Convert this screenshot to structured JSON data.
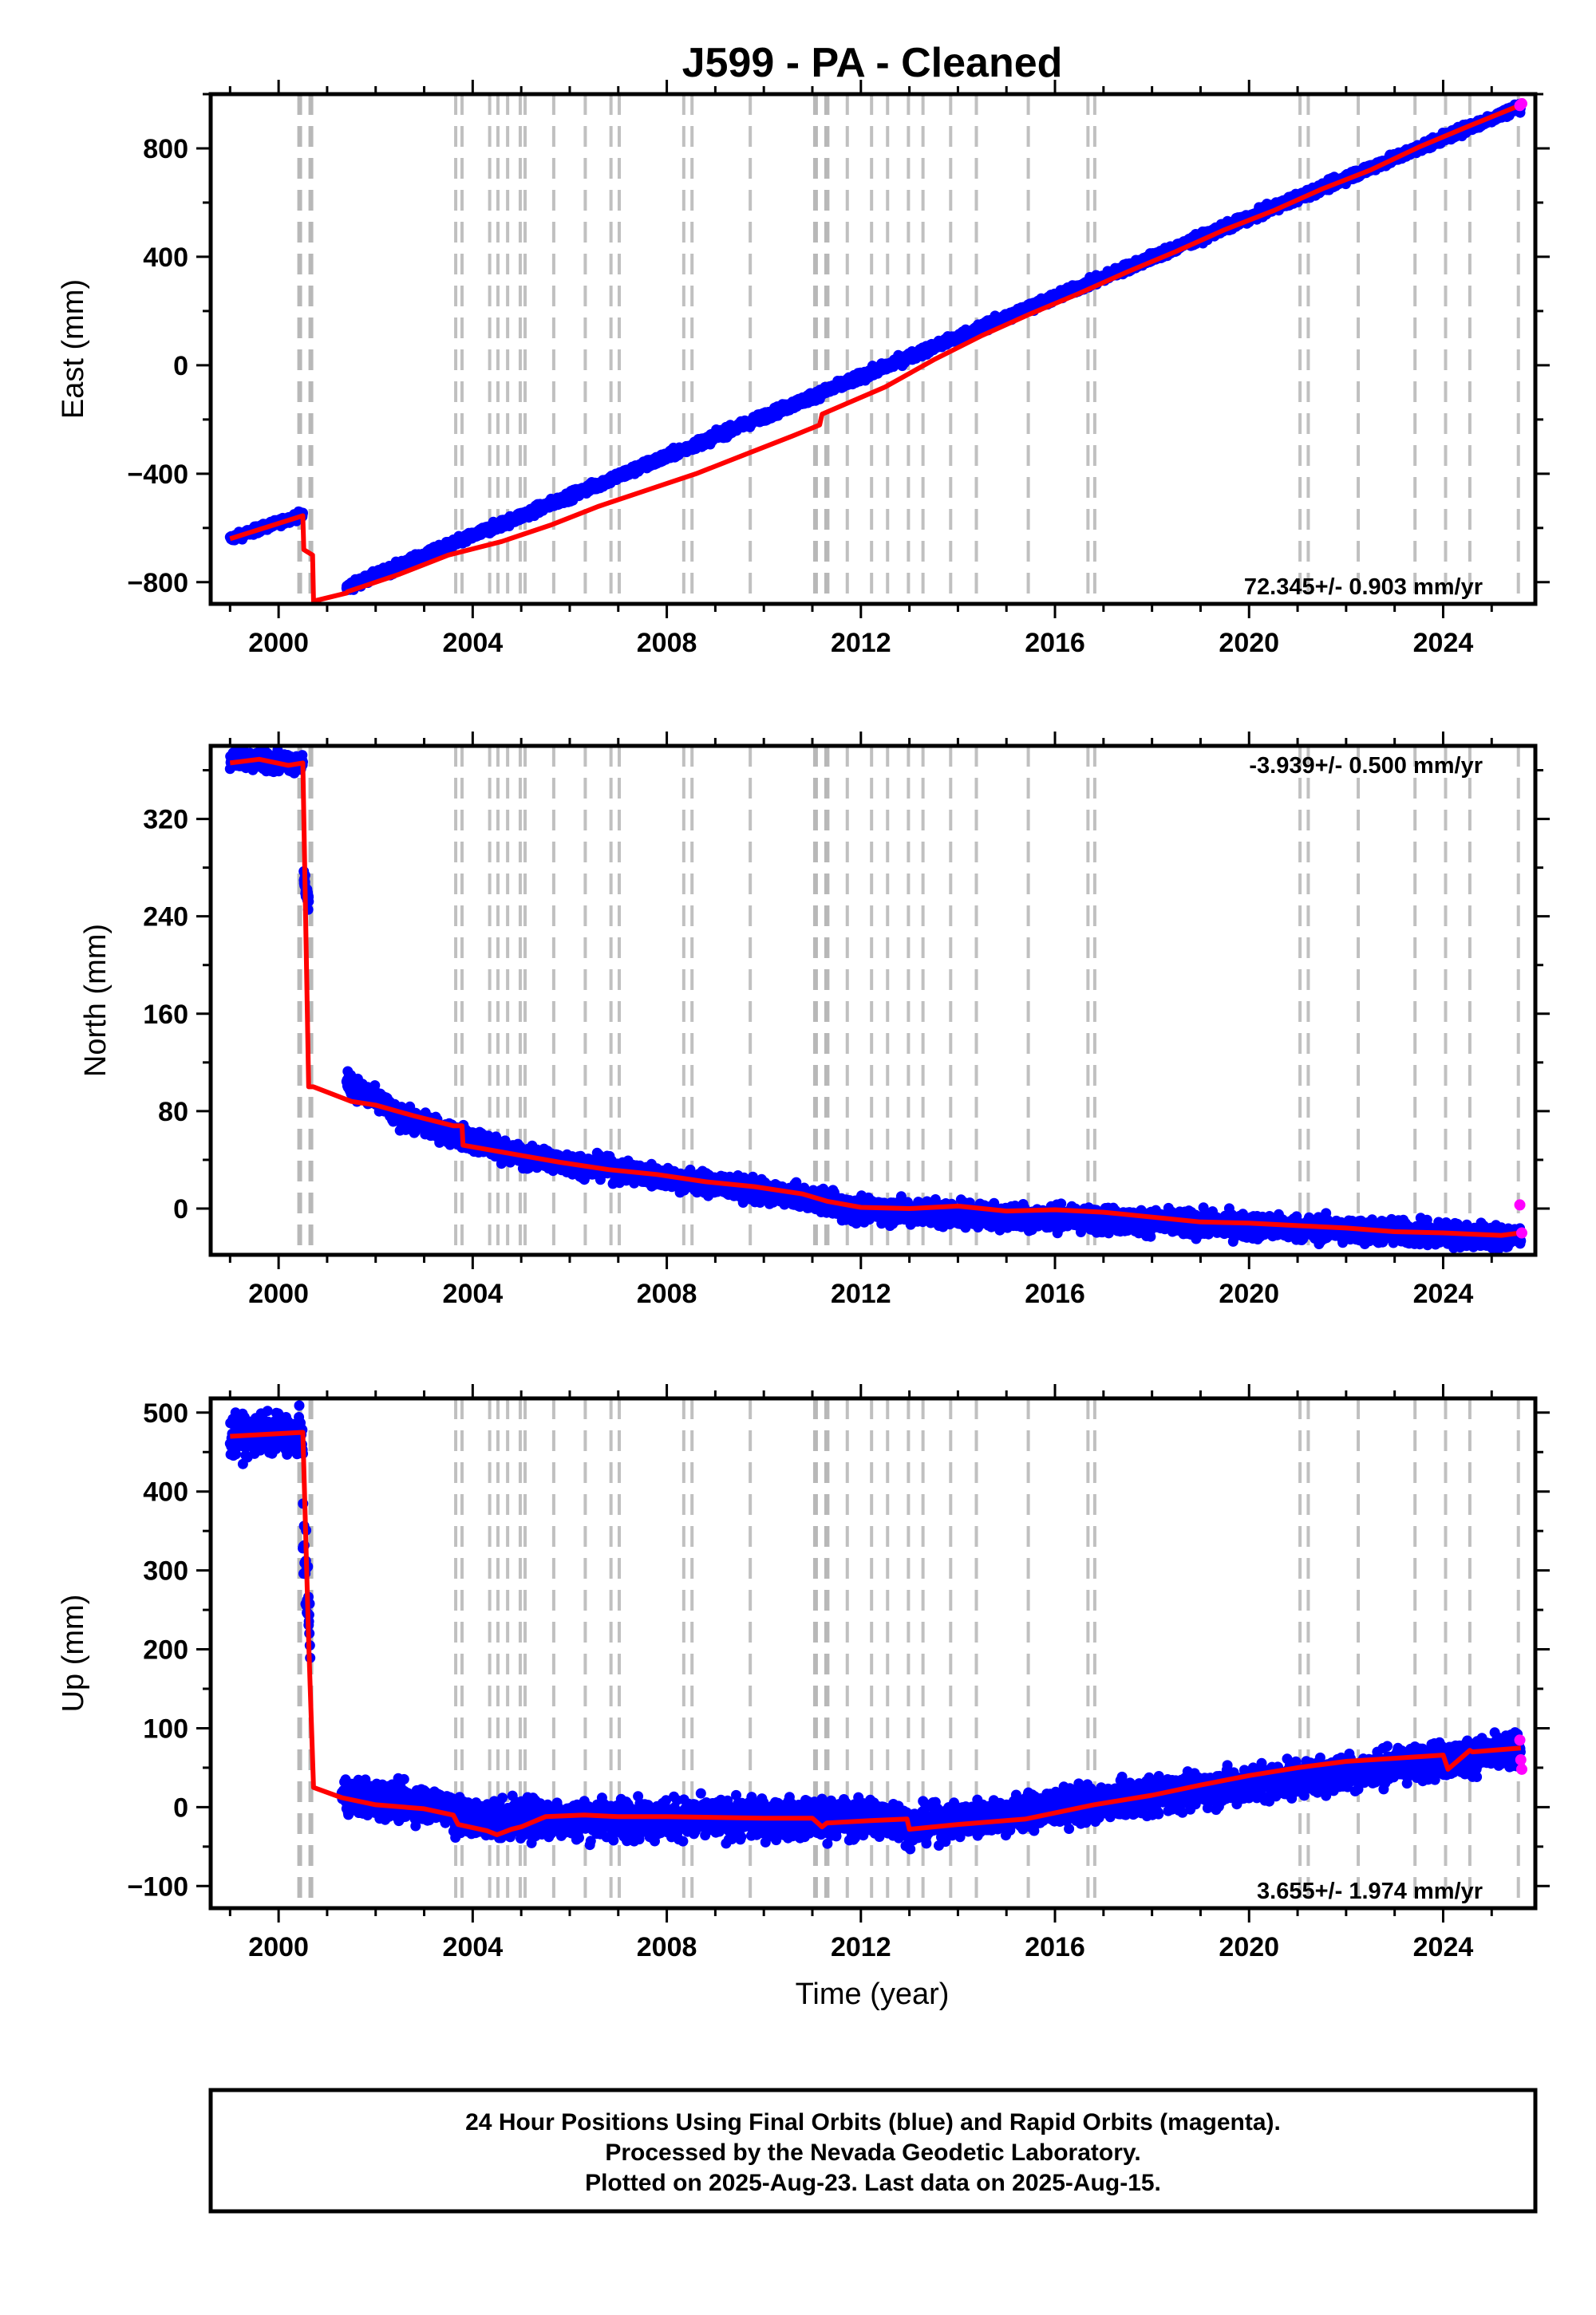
{
  "title": "J599  - PA - Cleaned",
  "xlabel": "Time (year)",
  "xticks": [
    "2000",
    "2004",
    "2008",
    "2012",
    "2016",
    "2020",
    "2024"
  ],
  "colors": {
    "final": "#0000ff",
    "rapid": "#ff00ff",
    "model": "#ff0000",
    "steps": "#c0c0c0",
    "steps_thick": "#b8b8b8"
  },
  "caption": {
    "line1": "24 Hour Positions Using Final Orbits (blue) and Rapid Orbits (magenta).",
    "line2": "Processed by the Nevada Geodetic Laboratory.",
    "line3": "Plotted on 2025-Aug-23. Last data on 2025-Aug-15."
  },
  "chart_data": [
    {
      "type": "scatter",
      "panel": "east",
      "ylabel": "East (mm)",
      "rate_label": "72.345+/- 0.903 mm/yr",
      "rate_position": "bottom-right",
      "xlim": [
        1998.6,
        2025.9
      ],
      "ylim": [
        -880,
        1000
      ],
      "yticks": [
        -800,
        -400,
        0,
        400,
        800
      ],
      "ytick_labels": [
        "−800",
        "−400",
        "0",
        "400",
        "800"
      ],
      "steps_thin": [
        2003.65,
        2003.78,
        2004.35,
        2004.52,
        2004.72,
        2004.98,
        2005.08,
        2005.67,
        2006.32,
        2006.85,
        2007.02,
        2008.35,
        2008.52,
        2009.72,
        2011.32,
        2011.72,
        2012.22,
        2012.55,
        2012.98,
        2013.28,
        2013.85,
        2014.38,
        2015.45,
        2016.68,
        2016.82,
        2021.05,
        2021.22,
        2022.25,
        2023.42,
        2024.05,
        2024.55,
        2025.55
      ],
      "steps_thick": [
        2000.55,
        2011.18
      ],
      "model": {
        "x": [
          1999.0,
          2000.5,
          2000.52,
          2000.7,
          2000.72,
          2001.4,
          2001.42,
          2002.5,
          2003.5,
          2004.6,
          2005.6,
          2006.6,
          2007.6,
          2008.6,
          2009.6,
          2010.6,
          2011.15,
          2011.2,
          2012.5,
          2013.5,
          2014.5,
          2015.5,
          2016.5,
          2017.5,
          2018.5,
          2019.5,
          2020.5,
          2021.5,
          2022.5,
          2023.5,
          2024.5,
          2025.6
        ],
        "y": [
          -640,
          -555,
          -680,
          -700,
          -870,
          -840,
          -835,
          -770,
          -700,
          -650,
          -590,
          -520,
          -460,
          -400,
          -330,
          -260,
          -220,
          -180,
          -80,
          20,
          110,
          190,
          265,
          345,
          420,
          500,
          570,
          650,
          720,
          805,
          880,
          960
        ]
      },
      "segments": [
        {
          "x0": 1999.0,
          "x1": 2000.5,
          "y0": -640,
          "y1": -550,
          "spread": 12
        },
        {
          "x0": 2001.4,
          "x1": 2025.6,
          "y0": -820,
          "y1": 955,
          "spread": 15
        }
      ],
      "rapid": {
        "x": [
          2025.58,
          2025.62
        ],
        "y": [
          958,
          965
        ]
      }
    },
    {
      "type": "scatter",
      "panel": "north",
      "ylabel": "North (mm)",
      "rate_label": "-3.939+/- 0.500 mm/yr",
      "rate_position": "top-right",
      "xlim": [
        1998.6,
        2025.9
      ],
      "ylim": [
        -38,
        380
      ],
      "yticks": [
        0,
        80,
        160,
        240,
        320
      ],
      "ytick_labels": [
        "0",
        "80",
        "160",
        "240",
        "320"
      ],
      "steps_thin": [
        2003.65,
        2003.78,
        2004.35,
        2004.52,
        2004.72,
        2004.98,
        2005.08,
        2005.67,
        2006.32,
        2006.85,
        2007.02,
        2008.35,
        2008.52,
        2009.72,
        2011.32,
        2011.72,
        2012.22,
        2012.55,
        2012.98,
        2013.28,
        2013.85,
        2014.38,
        2015.45,
        2016.68,
        2016.82,
        2021.05,
        2021.22,
        2022.25,
        2023.42,
        2024.05,
        2024.55,
        2025.55
      ],
      "steps_thick": [
        2000.55,
        2011.18
      ],
      "model": {
        "x": [
          1999.0,
          1999.6,
          2000.2,
          2000.5,
          2000.62,
          2000.72,
          2001.5,
          2002.0,
          2002.8,
          2003.6,
          2003.78,
          2003.8,
          2004.8,
          2005.8,
          2006.8,
          2007.8,
          2008.8,
          2009.8,
          2010.8,
          2011.3,
          2012.0,
          2013.0,
          2014.0,
          2015.0,
          2016.0,
          2017.0,
          2018.0,
          2019.0,
          2020.0,
          2021.0,
          2022.0,
          2023.0,
          2024.0,
          2024.6,
          2025.2,
          2025.6
        ],
        "y": [
          366,
          369,
          364,
          366,
          100,
          100,
          88,
          85,
          76,
          68,
          68,
          52,
          45,
          38,
          32,
          28,
          22,
          18,
          12,
          6,
          1,
          0,
          2,
          -2,
          -1,
          -3,
          -7,
          -11,
          -12,
          -14,
          -16,
          -19,
          -20,
          -21,
          -22,
          -20
        ]
      },
      "segments": [
        {
          "x0": 1999.0,
          "x1": 2000.5,
          "y0": 370,
          "y1": 366,
          "spread": 7
        },
        {
          "x0": 2000.52,
          "x1": 2000.62,
          "y0": 270,
          "y1": 252,
          "spread": 8
        },
        {
          "x0": 2001.4,
          "x1": 2002.3,
          "y0": 103,
          "y1": 82,
          "spread": 8
        },
        {
          "x0": 2002.3,
          "x1": 2005.0,
          "y0": 78,
          "y1": 43,
          "spread": 8
        },
        {
          "x0": 2005.0,
          "x1": 2011.5,
          "y0": 43,
          "y1": 5,
          "spread": 8
        },
        {
          "x0": 2011.5,
          "x1": 2025.6,
          "y0": 0,
          "y1": -24,
          "spread": 9
        }
      ],
      "rapid": {
        "x": [
          2025.58,
          2025.62
        ],
        "y": [
          3,
          -20
        ]
      }
    },
    {
      "type": "scatter",
      "panel": "up",
      "ylabel": "Up (mm)",
      "rate_label": "3.655+/- 1.974 mm/yr",
      "rate_position": "bottom-right",
      "xlim": [
        1998.6,
        2025.9
      ],
      "ylim": [
        -128,
        518
      ],
      "yticks": [
        -100,
        0,
        100,
        200,
        300,
        400,
        500
      ],
      "ytick_labels": [
        "−100",
        "0",
        "100",
        "200",
        "300",
        "400",
        "500"
      ],
      "steps_thin": [
        2003.65,
        2003.78,
        2004.35,
        2004.52,
        2004.72,
        2004.98,
        2005.08,
        2005.67,
        2006.32,
        2006.85,
        2007.02,
        2008.35,
        2008.52,
        2009.72,
        2011.32,
        2011.72,
        2012.22,
        2012.55,
        2012.98,
        2013.28,
        2013.85,
        2014.38,
        2015.45,
        2016.68,
        2016.82,
        2021.05,
        2021.22,
        2022.25,
        2023.42,
        2024.05,
        2024.55,
        2025.55
      ],
      "steps_thick": [
        2000.55,
        2011.18
      ],
      "model": {
        "x": [
          1999.0,
          2000.5,
          2000.62,
          2000.72,
          2001.3,
          2002.0,
          2003.0,
          2003.6,
          2003.7,
          2004.3,
          2004.5,
          2004.8,
          2005.0,
          2005.5,
          2006.3,
          2007.0,
          2008.0,
          2009.0,
          2010.0,
          2011.0,
          2011.2,
          2011.3,
          2012.2,
          2012.95,
          2013.0,
          2014.0,
          2015.4,
          2016.8,
          2018.0,
          2019.0,
          2020.0,
          2021.0,
          2022.0,
          2023.0,
          2024.0,
          2024.1,
          2024.55,
          2024.6,
          2025.6
        ],
        "y": [
          470,
          475,
          210,
          25,
          12,
          3,
          -2,
          -10,
          -22,
          -30,
          -35,
          -28,
          -25,
          -12,
          -10,
          -12,
          -12,
          -13,
          -14,
          -14,
          -25,
          -20,
          -17,
          -15,
          -28,
          -22,
          -15,
          3,
          15,
          28,
          40,
          50,
          58,
          62,
          66,
          48,
          72,
          70,
          75
        ]
      },
      "segments": [
        {
          "x0": 1999.0,
          "x1": 2000.5,
          "y0": 470,
          "y1": 475,
          "spread": 22
        },
        {
          "x0": 2000.5,
          "x1": 2000.65,
          "y0": 340,
          "y1": 220,
          "spread": 40
        },
        {
          "x0": 2001.3,
          "x1": 2003.6,
          "y0": 15,
          "y1": 0,
          "spread": 20
        },
        {
          "x0": 2003.6,
          "x1": 2012.9,
          "y0": -15,
          "y1": -15,
          "spread": 22
        },
        {
          "x0": 2012.9,
          "x1": 2025.6,
          "y0": -25,
          "y1": 72,
          "spread": 20
        }
      ],
      "rapid": {
        "x": [
          2025.58,
          2025.6,
          2025.62
        ],
        "y": [
          85,
          60,
          48
        ]
      }
    }
  ]
}
